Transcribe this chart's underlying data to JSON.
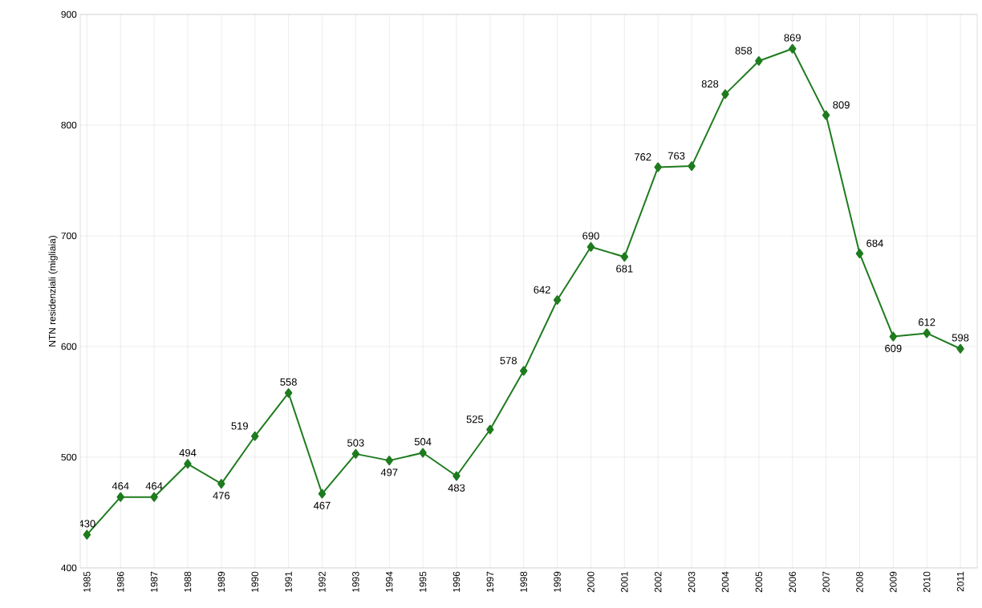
{
  "chart_data": {
    "type": "line",
    "ylabel": "NTN residenziali (migliaia)",
    "categories": [
      "1985",
      "1986",
      "1987",
      "1988",
      "1989",
      "1990",
      "1991",
      "1992",
      "1993",
      "1994",
      "1995",
      "1996",
      "1997",
      "1998",
      "1999",
      "2000",
      "2001",
      "2002",
      "2003",
      "2004",
      "2005",
      "2006",
      "2007",
      "2008",
      "2009",
      "2010",
      "2011"
    ],
    "values": [
      430,
      464,
      464,
      494,
      476,
      519,
      558,
      467,
      503,
      497,
      504,
      483,
      525,
      578,
      642,
      690,
      681,
      762,
      763,
      828,
      858,
      869,
      809,
      684,
      609,
      612,
      598
    ],
    "color": "#1e7b1e",
    "marker": "diamond",
    "line_style": "solid",
    "ylim": [
      400,
      900
    ],
    "yticks": [
      400,
      500,
      600,
      700,
      800,
      900
    ],
    "grid": true,
    "data_labels": true
  }
}
